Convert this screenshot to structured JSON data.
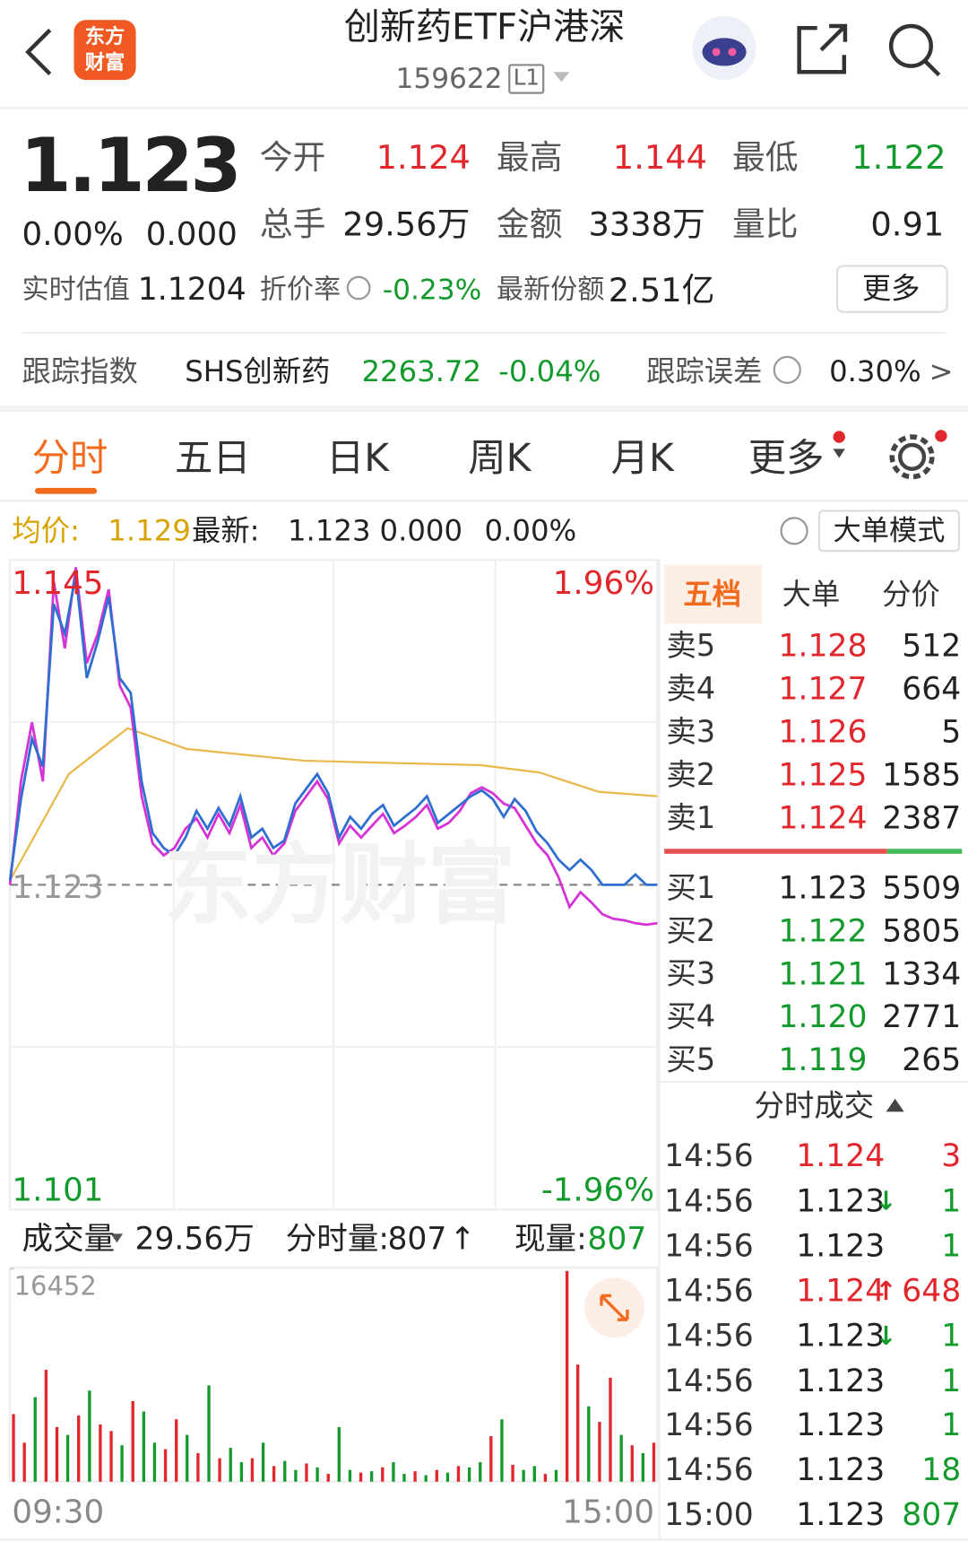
{
  "header": {
    "logo": [
      "东方",
      "财富"
    ],
    "title": "创新药ETF沪港深",
    "code": "159622",
    "badge": "L1"
  },
  "quote": {
    "price": "1.123",
    "change_pct": "0.00%",
    "change": "0.000",
    "stats": [
      {
        "label": "今开",
        "value": "1.124",
        "dir": "up"
      },
      {
        "label": "最高",
        "value": "1.144",
        "dir": "up"
      },
      {
        "label": "最低",
        "value": "1.122",
        "dir": "down"
      },
      {
        "label": "总手",
        "value": "29.56万",
        "dir": "flat"
      },
      {
        "label": "金额",
        "value": "3338万",
        "dir": "flat"
      },
      {
        "label": "量比",
        "value": "0.91",
        "dir": "flat"
      }
    ],
    "iopv_label": "实时估值",
    "iopv": "1.1204",
    "discount_label": "折价率",
    "discount": "-0.23%",
    "shares_label": "最新份额",
    "shares": "2.51亿",
    "more": "更多"
  },
  "tracking": {
    "label": "跟踪指数",
    "index": "SHS创新药",
    "value": "2263.72",
    "change": "-0.04%",
    "error_label": "跟踪误差",
    "error": "0.30%",
    "arrow": ">"
  },
  "tabs": [
    "分时",
    "五日",
    "日K",
    "周K",
    "月K",
    "更多"
  ],
  "info": {
    "avg_label": "均价:",
    "avg": "1.129",
    "last_label": "最新:",
    "last": "1.123",
    "change": "0.000",
    "pct": "0.00%",
    "mode": "大单模式"
  },
  "colors": {
    "up": "#e1262c",
    "down": "#139a2c",
    "flat": "#222222",
    "price": "#2f6fd0",
    "iopv": "#d633d6",
    "avg": "#e8b84a"
  },
  "chart": {
    "high": 1.145,
    "low": 1.101,
    "base": 1.123,
    "high_pct": "1.96%",
    "low_pct": "-1.96%",
    "watermark": "东方财富",
    "price": [
      1.1233,
      1.1288,
      1.1329,
      1.131,
      1.142,
      1.14,
      1.144,
      1.137,
      1.1395,
      1.1425,
      1.137,
      1.136,
      1.13,
      1.1265,
      1.1255,
      1.125,
      1.1262,
      1.128,
      1.1268,
      1.1282,
      1.127,
      1.129,
      1.1262,
      1.1268,
      1.1255,
      1.126,
      1.1285,
      1.1295,
      1.1305,
      1.1292,
      1.1262,
      1.1276,
      1.1268,
      1.1278,
      1.1284,
      1.127,
      1.1276,
      1.1282,
      1.129,
      1.1272,
      1.1278,
      1.1284,
      1.129,
      1.1294,
      1.1288,
      1.1276,
      1.1288,
      1.128,
      1.1266,
      1.1258,
      1.1247,
      1.124,
      1.1247,
      1.124,
      1.123,
      1.123,
      1.123,
      1.1237,
      1.123,
      1.123
    ],
    "iopv": [
      1.123,
      1.13,
      1.134,
      1.13,
      1.1435,
      1.139,
      1.1445,
      1.138,
      1.14,
      1.143,
      1.1365,
      1.135,
      1.129,
      1.1258,
      1.125,
      1.1255,
      1.1268,
      1.1275,
      1.1262,
      1.1278,
      1.1265,
      1.1284,
      1.1255,
      1.1262,
      1.125,
      1.1258,
      1.128,
      1.129,
      1.13,
      1.1288,
      1.1258,
      1.127,
      1.1262,
      1.127,
      1.1278,
      1.1265,
      1.127,
      1.1276,
      1.1284,
      1.1268,
      1.1272,
      1.128,
      1.1292,
      1.1296,
      1.1292,
      1.1285,
      1.1282,
      1.127,
      1.1258,
      1.125,
      1.1235,
      1.1215,
      1.1225,
      1.1218,
      1.121,
      1.1207,
      1.1206,
      1.1204,
      1.1203,
      1.1204
    ],
    "avg": [
      1.1233,
      1.1305,
      1.1336,
      1.1322,
      1.1318,
      1.1314,
      1.1313,
      1.1312,
      1.1311,
      1.1306,
      1.1293,
      1.129
    ]
  },
  "volume": {
    "label": "成交量",
    "total": "29.56万",
    "minute_label": "分时量:",
    "minute": "807",
    "minute_arrow": "↑",
    "now_label": "现量:",
    "now": "807",
    "max": 16452,
    "start": "09:30",
    "end": "15:00",
    "values": [
      5200,
      3000,
      6500,
      8600,
      4200,
      3600,
      5100,
      7000,
      4400,
      3900,
      2800,
      6200,
      5400,
      3000,
      2500,
      4800,
      3600,
      2200,
      7400,
      1800,
      2600,
      1500,
      1800,
      3000,
      1200,
      1600,
      900,
      1400,
      1100,
      600,
      4200,
      900,
      700,
      800,
      1100,
      1500,
      600,
      800,
      500,
      900,
      700,
      1200,
      1100,
      1500,
      3500,
      4800,
      1300,
      900,
      1200,
      600,
      900,
      16200,
      9000,
      5800,
      4600,
      8000,
      3600,
      2800,
      2200,
      3000
    ],
    "up": [
      1,
      1,
      0,
      1,
      1,
      0,
      1,
      0,
      1,
      1,
      0,
      1,
      0,
      0,
      1,
      1,
      0,
      1,
      0,
      1,
      0,
      0,
      1,
      0,
      1,
      0,
      0,
      1,
      0,
      1,
      0,
      0,
      1,
      0,
      1,
      0,
      0,
      1,
      0,
      1,
      0,
      1,
      0,
      0,
      1,
      0,
      1,
      0,
      0,
      1,
      0,
      1,
      1,
      0,
      1,
      1,
      0,
      1,
      0,
      1
    ]
  },
  "depth": {
    "tabs": [
      "五档",
      "大单",
      "分价"
    ],
    "asks": [
      {
        "label": "卖5",
        "price": "1.128",
        "vol": "512",
        "dir": "up"
      },
      {
        "label": "卖4",
        "price": "1.127",
        "vol": "664",
        "dir": "up"
      },
      {
        "label": "卖3",
        "price": "1.126",
        "vol": "5",
        "dir": "up"
      },
      {
        "label": "卖2",
        "price": "1.125",
        "vol": "1585",
        "dir": "up"
      },
      {
        "label": "卖1",
        "price": "1.124",
        "vol": "2387",
        "dir": "up"
      }
    ],
    "bids": [
      {
        "label": "买1",
        "price": "1.123",
        "vol": "5509",
        "dir": "flat"
      },
      {
        "label": "买2",
        "price": "1.122",
        "vol": "5805",
        "dir": "down"
      },
      {
        "label": "买3",
        "price": "1.121",
        "vol": "1334",
        "dir": "down"
      },
      {
        "label": "买4",
        "price": "1.120",
        "vol": "2771",
        "dir": "down"
      },
      {
        "label": "买5",
        "price": "1.119",
        "vol": "265",
        "dir": "down"
      }
    ]
  },
  "trades": {
    "title": "分时成交",
    "rows": [
      {
        "time": "14:56",
        "price": "1.124",
        "arrow": "",
        "vol": "3",
        "dir": "up",
        "side": "up"
      },
      {
        "time": "14:56",
        "price": "1.123",
        "arrow": "↓",
        "vol": "1",
        "dir": "flat",
        "side": "down"
      },
      {
        "time": "14:56",
        "price": "1.123",
        "arrow": "",
        "vol": "1",
        "dir": "flat",
        "side": "down"
      },
      {
        "time": "14:56",
        "price": "1.124",
        "arrow": "↑",
        "vol": "648",
        "dir": "up",
        "side": "up"
      },
      {
        "time": "14:56",
        "price": "1.123",
        "arrow": "↓",
        "vol": "1",
        "dir": "flat",
        "side": "down"
      },
      {
        "time": "14:56",
        "price": "1.123",
        "arrow": "",
        "vol": "1",
        "dir": "flat",
        "side": "down"
      },
      {
        "time": "14:56",
        "price": "1.123",
        "arrow": "",
        "vol": "1",
        "dir": "flat",
        "side": "down"
      },
      {
        "time": "14:56",
        "price": "1.123",
        "arrow": "",
        "vol": "18",
        "dir": "flat",
        "side": "down"
      },
      {
        "time": "15:00",
        "price": "1.123",
        "arrow": "",
        "vol": "807",
        "dir": "flat",
        "side": "down"
      }
    ]
  }
}
